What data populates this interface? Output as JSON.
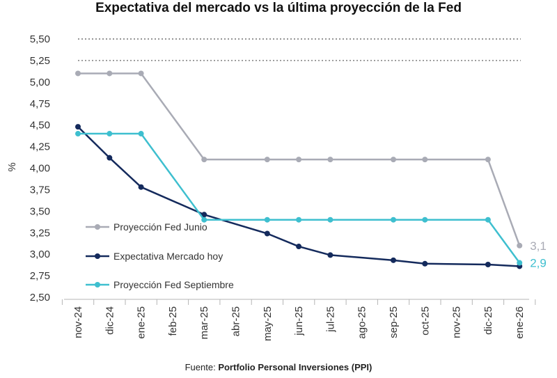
{
  "chart_data": {
    "type": "line",
    "title": "Expectativa del mercado vs la última proyección de la Fed",
    "ylabel": "%",
    "xlabel": "",
    "ylim": [
      2.5,
      5.5
    ],
    "yticks": [
      "5,50",
      "5,25",
      "5,00",
      "4,75",
      "4,50",
      "4,25",
      "4,00",
      "3,75",
      "3,50",
      "3,25",
      "3,00",
      "2,75",
      "2,50"
    ],
    "ytick_values": [
      5.5,
      5.25,
      5.0,
      4.75,
      4.5,
      4.25,
      4.0,
      3.75,
      3.5,
      3.25,
      3.0,
      2.75,
      2.5
    ],
    "reference_lines": [
      5.5,
      5.25
    ],
    "categories": [
      "nov-24",
      "dic-24",
      "ene-25",
      "feb-25",
      "mar-25",
      "abr-25",
      "may-25",
      "jun-25",
      "jul-25",
      "ago-25",
      "sep-25",
      "oct-25",
      "nov-25",
      "dic-25",
      "ene-26"
    ],
    "series": [
      {
        "name": "Proyección Fed Junio",
        "color": "#a9abb5",
        "points": [
          [
            0,
            5.1
          ],
          [
            1,
            5.1
          ],
          [
            2,
            5.1
          ],
          [
            4,
            4.1
          ],
          [
            6,
            4.1
          ],
          [
            7,
            4.1
          ],
          [
            8,
            4.1
          ],
          [
            10,
            4.1
          ],
          [
            11,
            4.1
          ],
          [
            13,
            4.1
          ],
          [
            14,
            3.1
          ]
        ],
        "end_label": "3,1"
      },
      {
        "name": "Expectativa Mercado hoy",
        "color": "#142a5c",
        "points": [
          [
            0,
            4.48
          ],
          [
            1,
            4.12
          ],
          [
            2,
            3.78
          ],
          [
            4,
            3.46
          ],
          [
            6,
            3.24
          ],
          [
            7,
            3.09
          ],
          [
            8,
            2.99
          ],
          [
            10,
            2.93
          ],
          [
            11,
            2.89
          ],
          [
            13,
            2.88
          ],
          [
            14,
            2.86
          ]
        ],
        "end_label": ""
      },
      {
        "name": "Proyección Fed Septiembre",
        "color": "#3ebfcf",
        "points": [
          [
            0,
            4.4
          ],
          [
            1,
            4.4
          ],
          [
            2,
            4.4
          ],
          [
            4,
            3.4
          ],
          [
            6,
            3.4
          ],
          [
            7,
            3.4
          ],
          [
            8,
            3.4
          ],
          [
            10,
            3.4
          ],
          [
            11,
            3.4
          ],
          [
            13,
            3.4
          ],
          [
            14,
            2.9
          ]
        ],
        "end_label": "2,9"
      }
    ],
    "legend": "inside-left"
  },
  "source": {
    "prefix": "Fuente: ",
    "name": "Portfolio Personal Inversiones (PPI)"
  }
}
